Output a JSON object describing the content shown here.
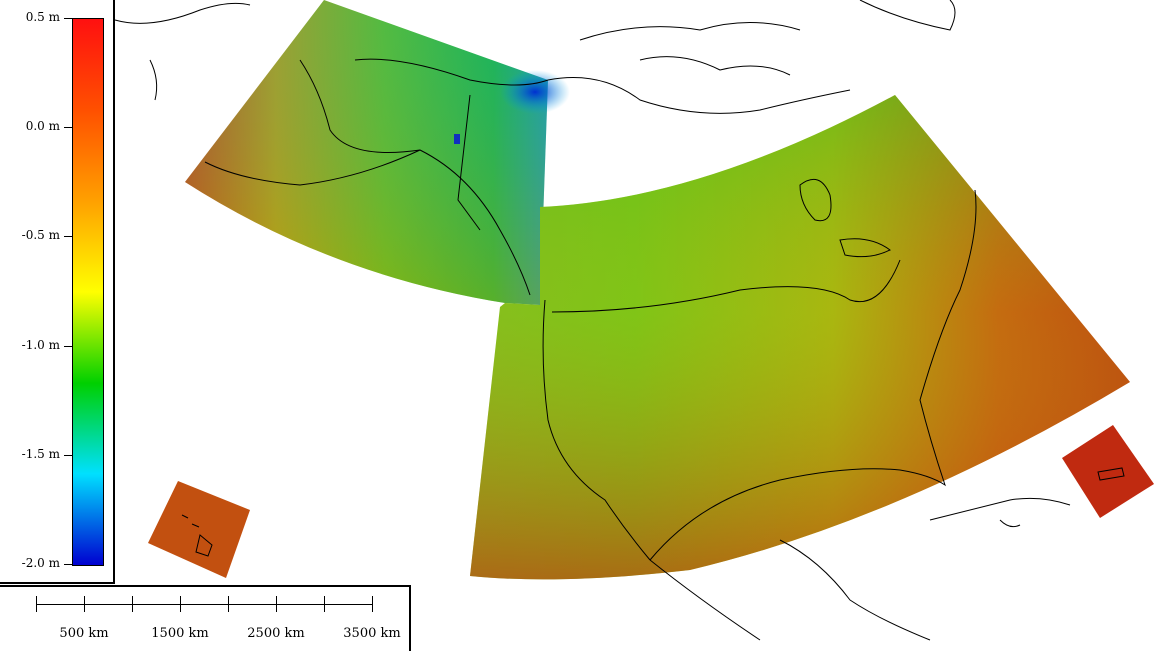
{
  "legend": {
    "ticks": [
      {
        "label": "0.5 m",
        "value": 0.5
      },
      {
        "label": "0.0 m",
        "value": 0.0
      },
      {
        "label": "-0.5 m",
        "value": -0.5
      },
      {
        "label": "-1.0 m",
        "value": -1.0
      },
      {
        "label": "-1.5 m",
        "value": -1.5
      },
      {
        "label": "-2.0 m",
        "value": -2.0
      }
    ],
    "range": [
      -2.0,
      0.5
    ],
    "colors": [
      "#0000d0",
      "#00e0ff",
      "#00d000",
      "#ffff00",
      "#ffa000",
      "#ff5000",
      "#ff1010"
    ]
  },
  "scale_bar": {
    "labels": [
      "500 km",
      "1500 km",
      "2500 km",
      "3500 km"
    ]
  },
  "map": {
    "regions": [
      "alaska",
      "conus",
      "hawaii",
      "puerto-rico"
    ],
    "colors": {
      "outline": "#000000",
      "background": "#ffffff"
    }
  }
}
